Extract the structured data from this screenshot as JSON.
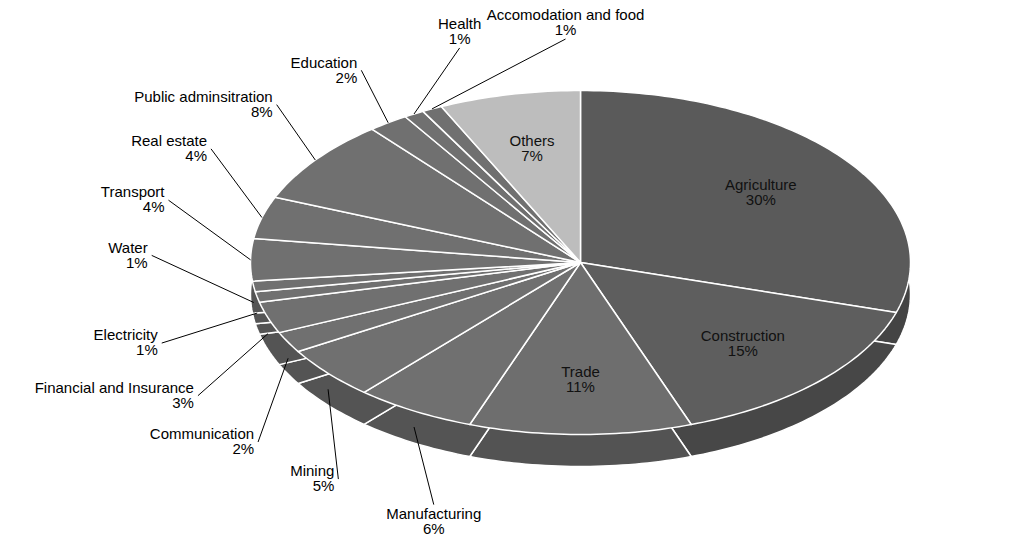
{
  "chart_data": {
    "type": "pie",
    "categories": [
      "Agriculture",
      "Construction",
      "Trade",
      "Manufacturing",
      "Mining",
      "Communication",
      "Financial and Insurance",
      "Electricity",
      "Water",
      "Transport",
      "Real estate",
      "Public adminsitration",
      "Education",
      "Health",
      "Accomodation and food",
      "Others"
    ],
    "values": [
      30,
      15,
      11,
      6,
      5,
      2,
      3,
      1,
      1,
      4,
      4,
      8,
      2,
      1,
      1,
      7
    ],
    "value_labels": [
      "30%",
      "15%",
      "11%",
      "6%",
      "5%",
      "2%",
      "3%",
      "1%",
      "1%",
      "4%",
      "4%",
      "8%",
      "2%",
      "1%",
      "1%",
      "7%"
    ],
    "colors": [
      "#5a5a5a",
      "#5e5e5e",
      "#6e6e6e",
      "#707070",
      "#707070",
      "#707070",
      "#707070",
      "#707070",
      "#707070",
      "#707070",
      "#707070",
      "#707070",
      "#707070",
      "#707070",
      "#707070",
      "#bdbdbd"
    ],
    "data_labels": true
  }
}
